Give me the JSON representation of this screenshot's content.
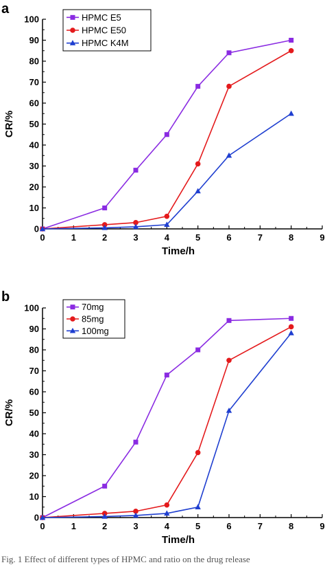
{
  "caption": "Fig. 1   Effect of different types of HPMC and ratio on the drug release",
  "colors": {
    "purple": "#8a2be2",
    "red": "#e41a1c",
    "blue": "#1f3fd0"
  },
  "chart_data": [
    {
      "type": "line",
      "panel_label": "a",
      "xlabel": "Time/h",
      "ylabel": "CR/%",
      "xlim": [
        0,
        9
      ],
      "ylim": [
        0,
        100
      ],
      "xticks": [
        0,
        1,
        2,
        3,
        4,
        5,
        6,
        7,
        8,
        9
      ],
      "yticks": [
        0,
        10,
        20,
        30,
        40,
        50,
        60,
        70,
        80,
        90,
        100
      ],
      "legend_position": "top-left",
      "series": [
        {
          "name": "HPMC E5",
          "color": "#8a2be2",
          "marker": "square",
          "x": [
            0,
            2,
            3,
            4,
            5,
            6,
            8
          ],
          "y": [
            0,
            10,
            28,
            45,
            68,
            84,
            90
          ]
        },
        {
          "name": "HPMC E50",
          "color": "#e41a1c",
          "marker": "circle",
          "x": [
            0,
            2,
            3,
            4,
            5,
            6,
            8
          ],
          "y": [
            0,
            2,
            3,
            6,
            31,
            68,
            85
          ]
        },
        {
          "name": "HPMC K4M",
          "color": "#1f3fd0",
          "marker": "triangle",
          "x": [
            0,
            2,
            3,
            4,
            5,
            6,
            8
          ],
          "y": [
            0,
            0.5,
            1,
            2,
            18,
            35,
            55
          ]
        }
      ]
    },
    {
      "type": "line",
      "panel_label": "b",
      "xlabel": "Time/h",
      "ylabel": "CR/%",
      "xlim": [
        0,
        9
      ],
      "ylim": [
        0,
        100
      ],
      "xticks": [
        0,
        1,
        2,
        3,
        4,
        5,
        6,
        7,
        8,
        9
      ],
      "yticks": [
        0,
        10,
        20,
        30,
        40,
        50,
        60,
        70,
        80,
        90,
        100
      ],
      "legend_position": "top-left",
      "series": [
        {
          "name": "70mg",
          "color": "#8a2be2",
          "marker": "square",
          "x": [
            0,
            2,
            3,
            4,
            5,
            6,
            8
          ],
          "y": [
            0,
            15,
            36,
            68,
            80,
            94,
            95
          ]
        },
        {
          "name": "85mg",
          "color": "#e41a1c",
          "marker": "circle",
          "x": [
            0,
            2,
            3,
            4,
            5,
            6,
            8
          ],
          "y": [
            0,
            2,
            3,
            6,
            31,
            75,
            91
          ]
        },
        {
          "name": "100mg",
          "color": "#1f3fd0",
          "marker": "triangle",
          "x": [
            0,
            2,
            3,
            4,
            5,
            6,
            8
          ],
          "y": [
            0,
            0.5,
            1,
            2,
            5,
            51,
            88
          ]
        }
      ]
    }
  ]
}
